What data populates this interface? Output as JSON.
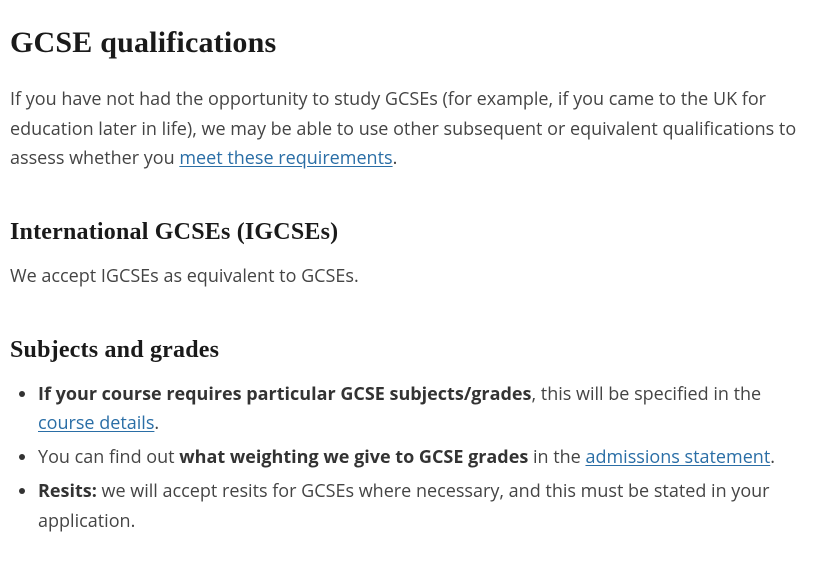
{
  "h2": "GCSE qualifications",
  "p1_a": "If you have not had the opportunity to study GCSEs (for example, if you came to the UK for education later in life), we may be able to use other subsequent or equivalent qualifications to assess whether you ",
  "p1_link": "meet these requirements",
  "p1_c": ".",
  "h3a": "International GCSEs (IGCSEs)",
  "p2": "We accept IGCSEs as equivalent to GCSEs.",
  "h3b": "Subjects and grades",
  "li1_strong": "If your course requires particular GCSE subjects/grades",
  "li1_b": ", this will be specified in the ",
  "li1_link": "course details",
  "li1_d": ".",
  "li2_a": "You can find out ",
  "li2_strong": "what weighting we give to GCSE grades",
  "li2_c": " in the ",
  "li2_link": "admissions statement",
  "li2_e": ".",
  "li3_strong": "Resits:",
  "li3_b": " we will accept resits for GCSEs where necessary, and this must be stated in your application."
}
